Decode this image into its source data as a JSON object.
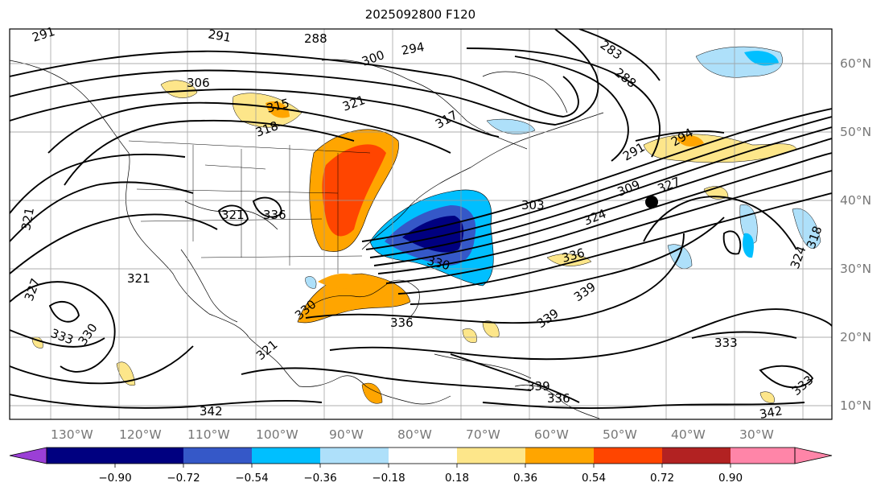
{
  "title": "2025092800 F120",
  "lon_labels": [
    "130°W",
    "120°W",
    "110°W",
    "100°W",
    "90°W",
    "80°W",
    "70°W",
    "60°W",
    "50°W",
    "40°W",
    "30°W"
  ],
  "lat_labels": [
    "60°N",
    "50°N",
    "40°N",
    "30°N",
    "20°N",
    "10°N"
  ],
  "colorbar": {
    "ticks": [
      "−0.90",
      "−0.72",
      "−0.54",
      "−0.36",
      "−0.18",
      "0.18",
      "0.36",
      "0.54",
      "0.72",
      "0.90"
    ],
    "colors": [
      "#9b3fd6",
      "#000080",
      "#3558c8",
      "#00bfff",
      "#aee0fa",
      "#ffffff",
      "#fde68a",
      "#ffa500",
      "#ff4500",
      "#b22222",
      "#ff85a8"
    ]
  },
  "contour_labels": [
    "291",
    "291",
    "288",
    "288",
    "283",
    "306",
    "300",
    "294",
    "321",
    "315",
    "318",
    "317",
    "291",
    "294",
    "303",
    "309",
    "327",
    "324",
    "336",
    "321",
    "333",
    "330",
    "321",
    "327",
    "330",
    "336",
    "336",
    "339",
    "339",
    "333",
    "342",
    "342",
    "339",
    "336",
    "333",
    "324",
    "318",
    "330",
    "321",
    "321"
  ],
  "marker": "black-dot"
}
